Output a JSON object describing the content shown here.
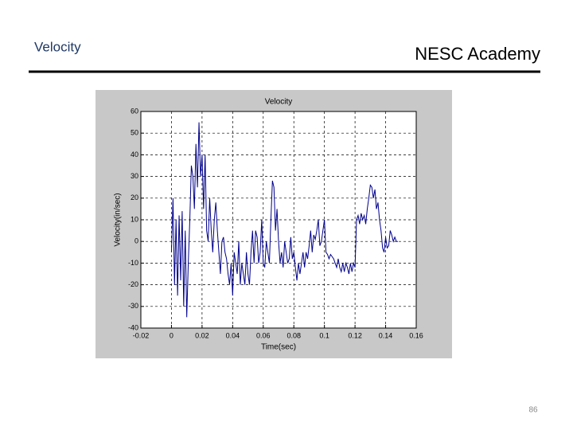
{
  "header": {
    "title": "Velocity",
    "brand": "NESC Academy"
  },
  "page_number": "86",
  "chart_data": {
    "type": "line",
    "title": "Velocity",
    "x_label": "Time(sec)",
    "y_label": "Velocity(in/sec)",
    "xlim": [
      -0.02,
      0.16
    ],
    "xticks": [
      -0.02,
      0,
      0.02,
      0.04,
      0.06,
      0.08,
      0.1,
      0.12,
      0.14,
      0.16
    ],
    "ylim": [
      -40,
      60
    ],
    "yticks": [
      -40,
      -30,
      -20,
      -10,
      0,
      10,
      20,
      30,
      40,
      50,
      60
    ],
    "grid": true,
    "series": [
      {
        "color": "#00008b",
        "x": [
          0,
          0.001,
          0.002,
          0.003,
          0.004,
          0.005,
          0.006,
          0.007,
          0.008,
          0.009,
          0.01,
          0.011,
          0.012,
          0.013,
          0.014,
          0.015,
          0.016,
          0.017,
          0.018,
          0.019,
          0.02,
          0.021,
          0.022,
          0.023,
          0.024,
          0.025,
          0.026,
          0.027,
          0.028,
          0.029,
          0.03,
          0.031,
          0.032,
          0.033,
          0.034,
          0.035,
          0.036,
          0.037,
          0.038,
          0.039,
          0.04,
          0.041,
          0.042,
          0.043,
          0.044,
          0.045,
          0.046,
          0.047,
          0.048,
          0.049,
          0.05,
          0.051,
          0.052,
          0.053,
          0.054,
          0.055,
          0.056,
          0.057,
          0.058,
          0.059,
          0.06,
          0.061,
          0.062,
          0.063,
          0.064,
          0.065,
          0.066,
          0.067,
          0.068,
          0.069,
          0.07,
          0.071,
          0.072,
          0.073,
          0.074,
          0.075,
          0.076,
          0.077,
          0.078,
          0.079,
          0.08,
          0.081,
          0.082,
          0.083,
          0.084,
          0.085,
          0.086,
          0.087,
          0.088,
          0.089,
          0.09,
          0.091,
          0.092,
          0.093,
          0.094,
          0.095,
          0.096,
          0.097,
          0.098,
          0.099,
          0.1,
          0.101,
          0.102,
          0.103,
          0.104,
          0.105,
          0.106,
          0.107,
          0.108,
          0.109,
          0.11,
          0.111,
          0.112,
          0.113,
          0.114,
          0.115,
          0.116,
          0.117,
          0.118,
          0.119,
          0.12,
          0.121,
          0.122,
          0.123,
          0.124,
          0.125,
          0.126,
          0.127,
          0.128,
          0.129,
          0.13,
          0.131,
          0.132,
          0.133,
          0.134,
          0.135,
          0.136,
          0.137,
          0.138,
          0.139,
          0.14,
          0.141,
          0.142,
          0.143,
          0.144,
          0.145,
          0.146,
          0.147,
          0.148
        ],
        "values": [
          -5,
          20,
          -20,
          10,
          -25,
          12,
          -18,
          14,
          -30,
          5,
          -35,
          -10,
          10,
          35,
          30,
          15,
          45,
          25,
          55,
          30,
          40,
          15,
          40,
          5,
          0,
          20,
          5,
          -5,
          10,
          18,
          5,
          -5,
          -15,
          0,
          2,
          -5,
          -8,
          -15,
          -20,
          -10,
          -25,
          -5,
          -10,
          -15,
          0,
          -20,
          -10,
          -15,
          -20,
          -5,
          -15,
          -20,
          -5,
          5,
          -10,
          5,
          2,
          -10,
          -5,
          10,
          -10,
          -12,
          0,
          -5,
          -10,
          10,
          28,
          25,
          5,
          15,
          0,
          -10,
          -5,
          -12,
          0,
          -5,
          -10,
          -8,
          2,
          -8,
          -5,
          -12,
          -18,
          -10,
          -15,
          -10,
          -5,
          -12,
          -5,
          -8,
          -2,
          5,
          -5,
          3,
          1,
          5,
          10,
          -2,
          0,
          5,
          10,
          -5,
          -6,
          -8,
          -6,
          -7,
          -8,
          -10,
          -12,
          -8,
          -12,
          -14,
          -10,
          -14,
          -10,
          -12,
          -15,
          -10,
          -14,
          -10,
          -12,
          10,
          12,
          8,
          13,
          10,
          12,
          8,
          15,
          20,
          26,
          25,
          20,
          24,
          15,
          18,
          10,
          5,
          -3,
          -5,
          2,
          -3,
          -2,
          5,
          3,
          0,
          2,
          0,
          0
        ]
      }
    ]
  }
}
